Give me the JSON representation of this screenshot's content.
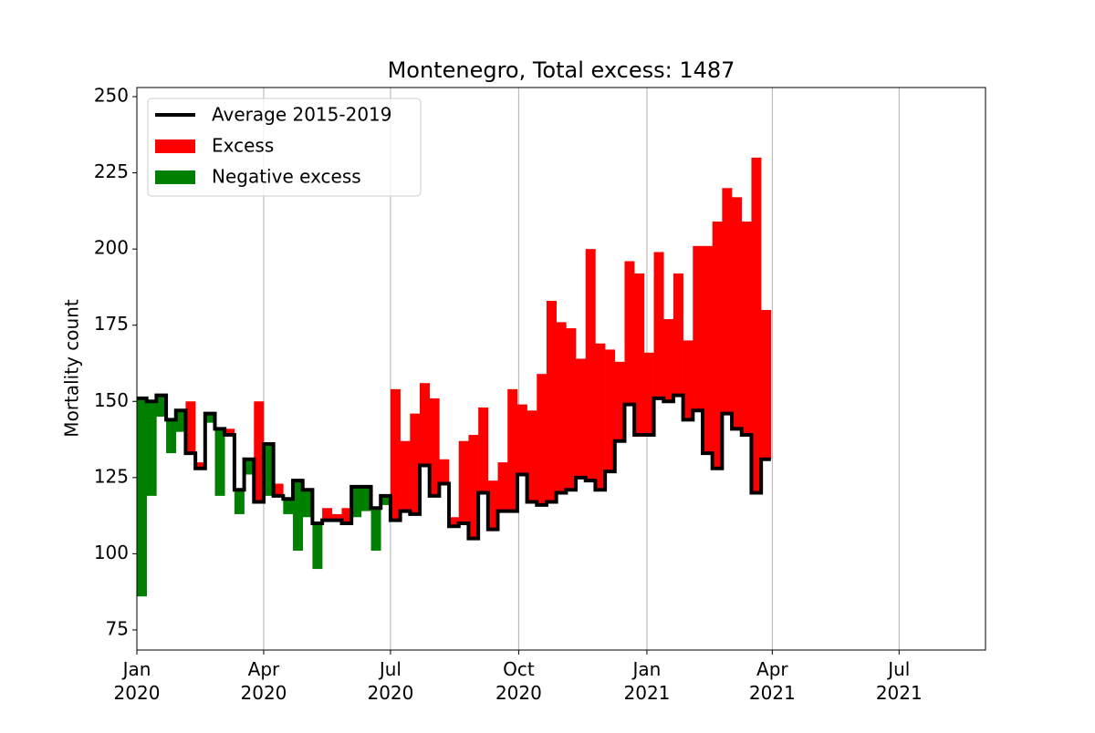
{
  "chart_data": {
    "type": "step",
    "title": "Montenegro, Total excess: 1487",
    "ylabel": "Mortality count",
    "x": [
      0,
      1,
      2,
      3,
      4,
      5,
      6,
      7,
      8,
      9,
      10,
      11,
      12,
      13,
      14,
      15,
      16,
      17,
      18,
      19,
      20,
      21,
      22,
      23,
      24,
      25,
      26,
      27,
      28,
      29,
      30,
      31,
      32,
      33,
      34,
      35,
      36,
      37,
      38,
      39,
      40,
      41,
      42,
      43,
      44,
      45,
      46,
      47,
      48,
      49,
      50,
      51,
      52,
      53,
      54,
      55,
      56,
      57,
      58,
      59,
      60,
      61,
      62,
      63,
      64
    ],
    "values": [
      86,
      119,
      145,
      133,
      140,
      150,
      130,
      143,
      119,
      141,
      113,
      126,
      150,
      119,
      123,
      113,
      101,
      112,
      95,
      115,
      113,
      115,
      112,
      114,
      101,
      116,
      154,
      137,
      146,
      156,
      151,
      131,
      112,
      137,
      139,
      148,
      124,
      130,
      154,
      149,
      147,
      159,
      183,
      176,
      174,
      164,
      200,
      169,
      167,
      163,
      196,
      192,
      166,
      199,
      177,
      192,
      170,
      201,
      201,
      209,
      220,
      217,
      209,
      230,
      180
    ],
    "series": [
      {
        "name": "Average 2015-2019",
        "color": "#000000",
        "values": [
          151,
          150,
          152,
          144,
          147,
          133,
          128,
          146,
          141,
          139,
          121,
          131,
          117,
          136,
          119,
          118,
          124,
          121,
          110,
          111,
          111,
          110,
          122,
          122,
          115,
          119,
          111,
          114,
          113,
          129,
          119,
          123,
          109,
          110,
          105,
          120,
          108,
          114,
          114,
          126,
          117,
          116,
          117,
          120,
          121,
          125,
          124,
          121,
          127,
          137,
          149,
          139,
          139,
          151,
          150,
          152,
          144,
          147,
          133,
          128,
          146,
          141,
          139,
          120,
          131
        ]
      }
    ],
    "fills": [
      {
        "name": "Excess",
        "color": "#ff0000"
      },
      {
        "name": "Negative excess",
        "color": "#008000"
      }
    ],
    "xlim": [
      0,
      87
    ],
    "xticks": [
      {
        "value": 0,
        "label": "Jan 2020"
      },
      {
        "value": 13,
        "label": "Apr 2020"
      },
      {
        "value": 26,
        "label": "Jul 2020"
      },
      {
        "value": 39.14,
        "label": "Oct 2020"
      },
      {
        "value": 52.29,
        "label": "Jan 2021"
      },
      {
        "value": 65.14,
        "label": "Apr 2021"
      },
      {
        "value": 78.14,
        "label": "Jul 2021"
      }
    ],
    "ylim": [
      68.4,
      253
    ],
    "yticks": [
      75,
      100,
      125,
      150,
      175,
      200,
      225,
      250
    ],
    "grid": "x",
    "legend": "upper left"
  }
}
